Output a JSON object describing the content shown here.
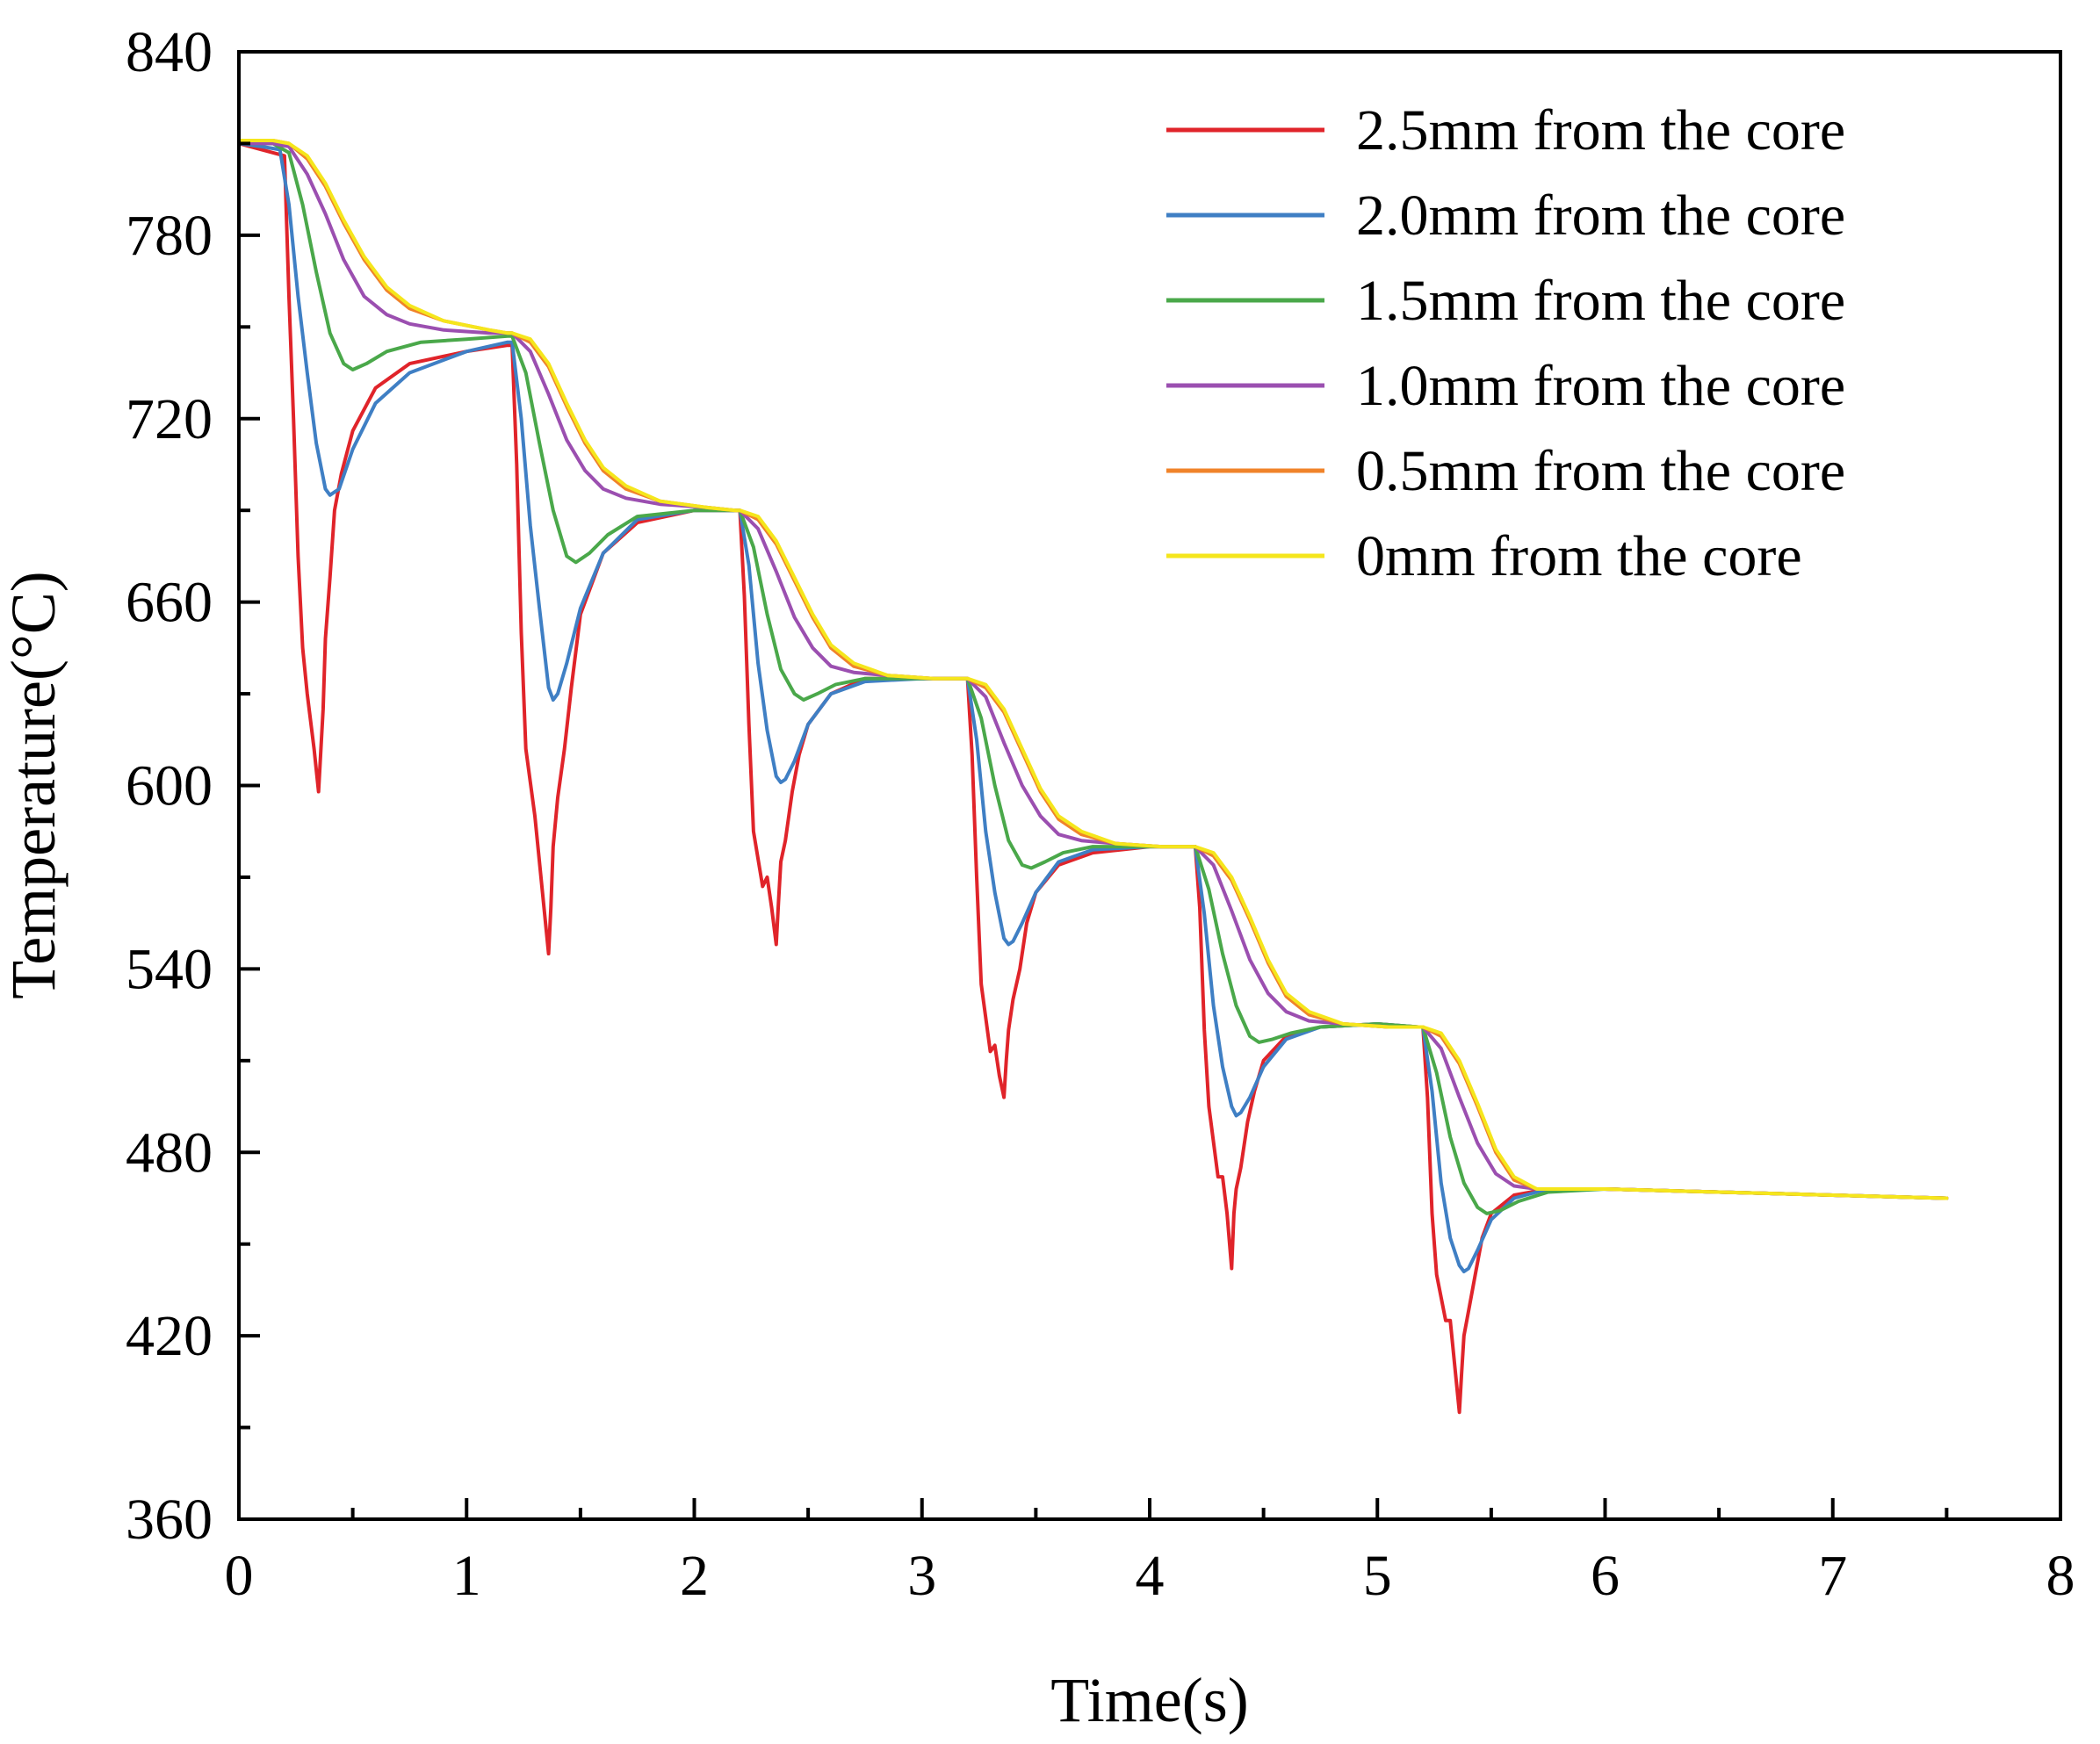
{
  "chart_data": {
    "type": "line",
    "title": "",
    "xlabel": "Time(s)",
    "ylabel": "Temperature(°C)",
    "xlim": [
      0,
      8
    ],
    "ylim": [
      360,
      840
    ],
    "xticks": [
      0,
      1,
      2,
      3,
      4,
      5,
      6,
      7,
      8
    ],
    "xtick_labels": [
      "0",
      "1",
      "2",
      "3",
      "4",
      "5",
      "6",
      "7",
      "8"
    ],
    "yticks": [
      360,
      420,
      480,
      540,
      600,
      660,
      720,
      780,
      840
    ],
    "ytick_labels": [
      "360",
      "420",
      "480",
      "540",
      "600",
      "660",
      "720",
      "780",
      "840"
    ],
    "grid": false,
    "legend_position": "top-right",
    "series": [
      {
        "name": "2.5mm from the core",
        "color": "#e0242a",
        "x": [
          0.0,
          0.1,
          0.15,
          0.2,
          0.22,
          0.24,
          0.26,
          0.28,
          0.3,
          0.33,
          0.35,
          0.37,
          0.38,
          0.4,
          0.42,
          0.45,
          0.5,
          0.6,
          0.75,
          1.0,
          1.18,
          1.2,
          1.22,
          1.24,
          1.26,
          1.3,
          1.34,
          1.36,
          1.37,
          1.38,
          1.4,
          1.43,
          1.46,
          1.5,
          1.6,
          1.75,
          2.0,
          2.18,
          2.2,
          2.22,
          2.24,
          2.26,
          2.3,
          2.32,
          2.34,
          2.36,
          2.37,
          2.38,
          2.4,
          2.43,
          2.46,
          2.5,
          2.6,
          2.75,
          3.0,
          3.18,
          3.2,
          3.22,
          3.24,
          3.26,
          3.3,
          3.32,
          3.34,
          3.36,
          3.37,
          3.38,
          3.4,
          3.43,
          3.46,
          3.5,
          3.6,
          3.75,
          4.0,
          4.18,
          4.2,
          4.22,
          4.24,
          4.26,
          4.3,
          4.32,
          4.34,
          4.36,
          4.37,
          4.38,
          4.4,
          4.43,
          4.46,
          4.5,
          4.6,
          4.75,
          5.0,
          5.18,
          5.2,
          5.22,
          5.24,
          5.26,
          5.3,
          5.32,
          5.34,
          5.36,
          5.37,
          5.38,
          5.4,
          5.43,
          5.46,
          5.5,
          5.6,
          5.75,
          6.0,
          7.5
        ],
        "y": [
          810,
          808,
          807,
          806,
          760,
          720,
          675,
          645,
          630,
          612,
          598,
          625,
          648,
          668,
          690,
          702,
          716,
          730,
          738,
          742,
          744,
          744,
          705,
          650,
          612,
          590,
          560,
          545,
          560,
          580,
          596,
          612,
          632,
          656,
          676,
          686,
          690,
          690,
          690,
          662,
          620,
          585,
          567,
          570,
          560,
          548,
          562,
          575,
          582,
          598,
          610,
          620,
          630,
          635,
          635,
          635,
          635,
          610,
          570,
          535,
          513,
          515,
          505,
          498,
          510,
          520,
          530,
          540,
          555,
          565,
          574,
          578,
          580,
          580,
          580,
          560,
          520,
          495,
          472,
          472,
          460,
          442,
          460,
          468,
          475,
          490,
          500,
          510,
          518,
          521,
          522,
          521,
          521,
          498,
          460,
          440,
          425,
          425,
          410,
          395,
          408,
          420,
          428,
          440,
          452,
          460,
          466,
          468,
          468,
          465
        ]
      },
      {
        "name": "2.0mm from the core",
        "color": "#3f7fc4",
        "x": [
          0.0,
          0.1,
          0.18,
          0.22,
          0.26,
          0.3,
          0.34,
          0.38,
          0.4,
          0.44,
          0.5,
          0.6,
          0.75,
          1.0,
          1.18,
          1.2,
          1.24,
          1.28,
          1.32,
          1.36,
          1.38,
          1.4,
          1.44,
          1.5,
          1.6,
          1.75,
          2.0,
          2.18,
          2.2,
          2.24,
          2.28,
          2.32,
          2.36,
          2.38,
          2.4,
          2.44,
          2.5,
          2.6,
          2.75,
          3.0,
          3.18,
          3.2,
          3.24,
          3.28,
          3.32,
          3.36,
          3.38,
          3.4,
          3.44,
          3.5,
          3.6,
          3.75,
          4.0,
          4.18,
          4.2,
          4.24,
          4.28,
          4.32,
          4.36,
          4.38,
          4.4,
          4.44,
          4.5,
          4.6,
          4.75,
          5.0,
          5.18,
          5.2,
          5.24,
          5.28,
          5.32,
          5.36,
          5.38,
          5.4,
          5.44,
          5.5,
          5.6,
          5.75,
          6.0,
          7.5
        ],
        "y": [
          810,
          809,
          808,
          790,
          760,
          735,
          712,
          697,
          695,
          697,
          710,
          725,
          735,
          742,
          745,
          745,
          720,
          685,
          658,
          632,
          628,
          630,
          640,
          658,
          676,
          687,
          690,
          690,
          690,
          672,
          640,
          618,
          603,
          601,
          602,
          608,
          620,
          630,
          634,
          635,
          635,
          635,
          615,
          585,
          565,
          550,
          548,
          549,
          555,
          565,
          575,
          579,
          580,
          580,
          580,
          558,
          528,
          508,
          495,
          492,
          493,
          498,
          508,
          517,
          521,
          522,
          521,
          521,
          500,
          470,
          452,
          443,
          441,
          442,
          448,
          458,
          465,
          468,
          468,
          465
        ]
      },
      {
        "name": "1.5mm from the core",
        "color": "#4aa84a",
        "x": [
          0.0,
          0.15,
          0.22,
          0.28,
          0.34,
          0.4,
          0.46,
          0.5,
          0.56,
          0.65,
          0.8,
          1.0,
          1.18,
          1.2,
          1.26,
          1.32,
          1.38,
          1.44,
          1.48,
          1.54,
          1.62,
          1.75,
          2.0,
          2.18,
          2.2,
          2.26,
          2.32,
          2.38,
          2.44,
          2.48,
          2.54,
          2.62,
          2.75,
          3.0,
          3.18,
          3.2,
          3.26,
          3.32,
          3.38,
          3.44,
          3.48,
          3.54,
          3.62,
          3.75,
          4.0,
          4.18,
          4.2,
          4.26,
          4.32,
          4.38,
          4.44,
          4.48,
          4.54,
          4.62,
          4.75,
          5.0,
          5.18,
          5.2,
          5.26,
          5.32,
          5.38,
          5.44,
          5.48,
          5.54,
          5.62,
          5.75,
          6.0,
          7.5
        ],
        "y": [
          810,
          810,
          807,
          790,
          768,
          748,
          738,
          736,
          738,
          742,
          745,
          746,
          747,
          747,
          735,
          712,
          690,
          675,
          673,
          676,
          682,
          688,
          690,
          690,
          690,
          678,
          656,
          638,
          630,
          628,
          630,
          633,
          635,
          635,
          635,
          635,
          622,
          600,
          582,
          574,
          573,
          575,
          578,
          580,
          580,
          580,
          580,
          566,
          545,
          528,
          518,
          516,
          517,
          519,
          521,
          522,
          521,
          521,
          506,
          485,
          470,
          462,
          460,
          461,
          464,
          467,
          468,
          465
        ]
      },
      {
        "name": "1.0mm from the core",
        "color": "#9b4fb0",
        "x": [
          0.0,
          0.15,
          0.22,
          0.3,
          0.38,
          0.46,
          0.55,
          0.65,
          0.75,
          0.9,
          1.1,
          1.18,
          1.2,
          1.28,
          1.36,
          1.44,
          1.52,
          1.6,
          1.7,
          1.85,
          2.05,
          2.18,
          2.2,
          2.28,
          2.36,
          2.44,
          2.52,
          2.6,
          2.7,
          2.85,
          3.05,
          3.18,
          3.2,
          3.28,
          3.36,
          3.44,
          3.52,
          3.6,
          3.7,
          3.85,
          4.05,
          4.18,
          4.2,
          4.28,
          4.36,
          4.44,
          4.52,
          4.6,
          4.7,
          4.85,
          5.05,
          5.18,
          5.2,
          5.28,
          5.36,
          5.44,
          5.52,
          5.6,
          5.7,
          5.85,
          6.0,
          7.5
        ],
        "y": [
          810,
          810,
          809,
          800,
          787,
          772,
          760,
          754,
          751,
          749,
          748,
          748,
          748,
          742,
          728,
          713,
          703,
          697,
          694,
          692,
          691,
          690,
          690,
          684,
          670,
          655,
          645,
          639,
          637,
          636,
          635,
          635,
          635,
          629,
          614,
          600,
          590,
          584,
          582,
          581,
          580,
          580,
          580,
          574,
          559,
          543,
          532,
          526,
          523,
          522,
          521,
          521,
          521,
          514,
          498,
          483,
          473,
          469,
          468,
          468,
          468,
          465
        ]
      },
      {
        "name": "0.5mm from the core",
        "color": "#f0832a",
        "x": [
          0.0,
          0.15,
          0.22,
          0.3,
          0.38,
          0.46,
          0.55,
          0.65,
          0.75,
          0.9,
          1.1,
          1.18,
          1.2,
          1.28,
          1.36,
          1.44,
          1.52,
          1.6,
          1.7,
          1.85,
          2.05,
          2.18,
          2.2,
          2.28,
          2.36,
          2.44,
          2.52,
          2.6,
          2.7,
          2.85,
          3.05,
          3.18,
          3.2,
          3.28,
          3.36,
          3.44,
          3.52,
          3.6,
          3.7,
          3.85,
          4.05,
          4.18,
          4.2,
          4.28,
          4.36,
          4.44,
          4.52,
          4.6,
          4.7,
          4.85,
          5.05,
          5.18,
          5.2,
          5.28,
          5.36,
          5.44,
          5.52,
          5.6,
          5.7,
          5.85,
          6.0,
          7.5
        ],
        "y": [
          811,
          811,
          810,
          805,
          796,
          784,
          772,
          762,
          756,
          752,
          749,
          748,
          748,
          745,
          737,
          724,
          712,
          703,
          697,
          693,
          691,
          690,
          690,
          687,
          679,
          667,
          655,
          645,
          639,
          636,
          635,
          635,
          635,
          632,
          624,
          611,
          598,
          589,
          584,
          581,
          580,
          580,
          580,
          577,
          569,
          556,
          542,
          531,
          525,
          522,
          521,
          521,
          521,
          518,
          509,
          495,
          480,
          471,
          468,
          468,
          468,
          465
        ]
      },
      {
        "name": "0mm from the core",
        "color": "#f5e61c",
        "x": [
          0.0,
          0.15,
          0.22,
          0.3,
          0.38,
          0.46,
          0.55,
          0.65,
          0.75,
          0.9,
          1.1,
          1.18,
          1.2,
          1.28,
          1.36,
          1.44,
          1.52,
          1.6,
          1.7,
          1.85,
          2.05,
          2.18,
          2.2,
          2.28,
          2.36,
          2.44,
          2.52,
          2.6,
          2.7,
          2.85,
          3.05,
          3.18,
          3.2,
          3.28,
          3.36,
          3.44,
          3.52,
          3.6,
          3.7,
          3.85,
          4.05,
          4.18,
          4.2,
          4.28,
          4.36,
          4.44,
          4.52,
          4.6,
          4.7,
          4.85,
          5.05,
          5.18,
          5.2,
          5.28,
          5.36,
          5.44,
          5.52,
          5.6,
          5.7,
          5.85,
          6.0,
          7.5
        ],
        "y": [
          811,
          811,
          810,
          806,
          797,
          785,
          773,
          763,
          757,
          752,
          749,
          748,
          748,
          746,
          738,
          725,
          713,
          704,
          698,
          693,
          691,
          690,
          690,
          688,
          680,
          668,
          656,
          646,
          640,
          636,
          635,
          635,
          635,
          633,
          625,
          612,
          599,
          590,
          585,
          581,
          580,
          580,
          580,
          578,
          570,
          557,
          543,
          532,
          526,
          522,
          521,
          521,
          521,
          519,
          510,
          496,
          481,
          472,
          468,
          468,
          468,
          465
        ]
      }
    ]
  }
}
